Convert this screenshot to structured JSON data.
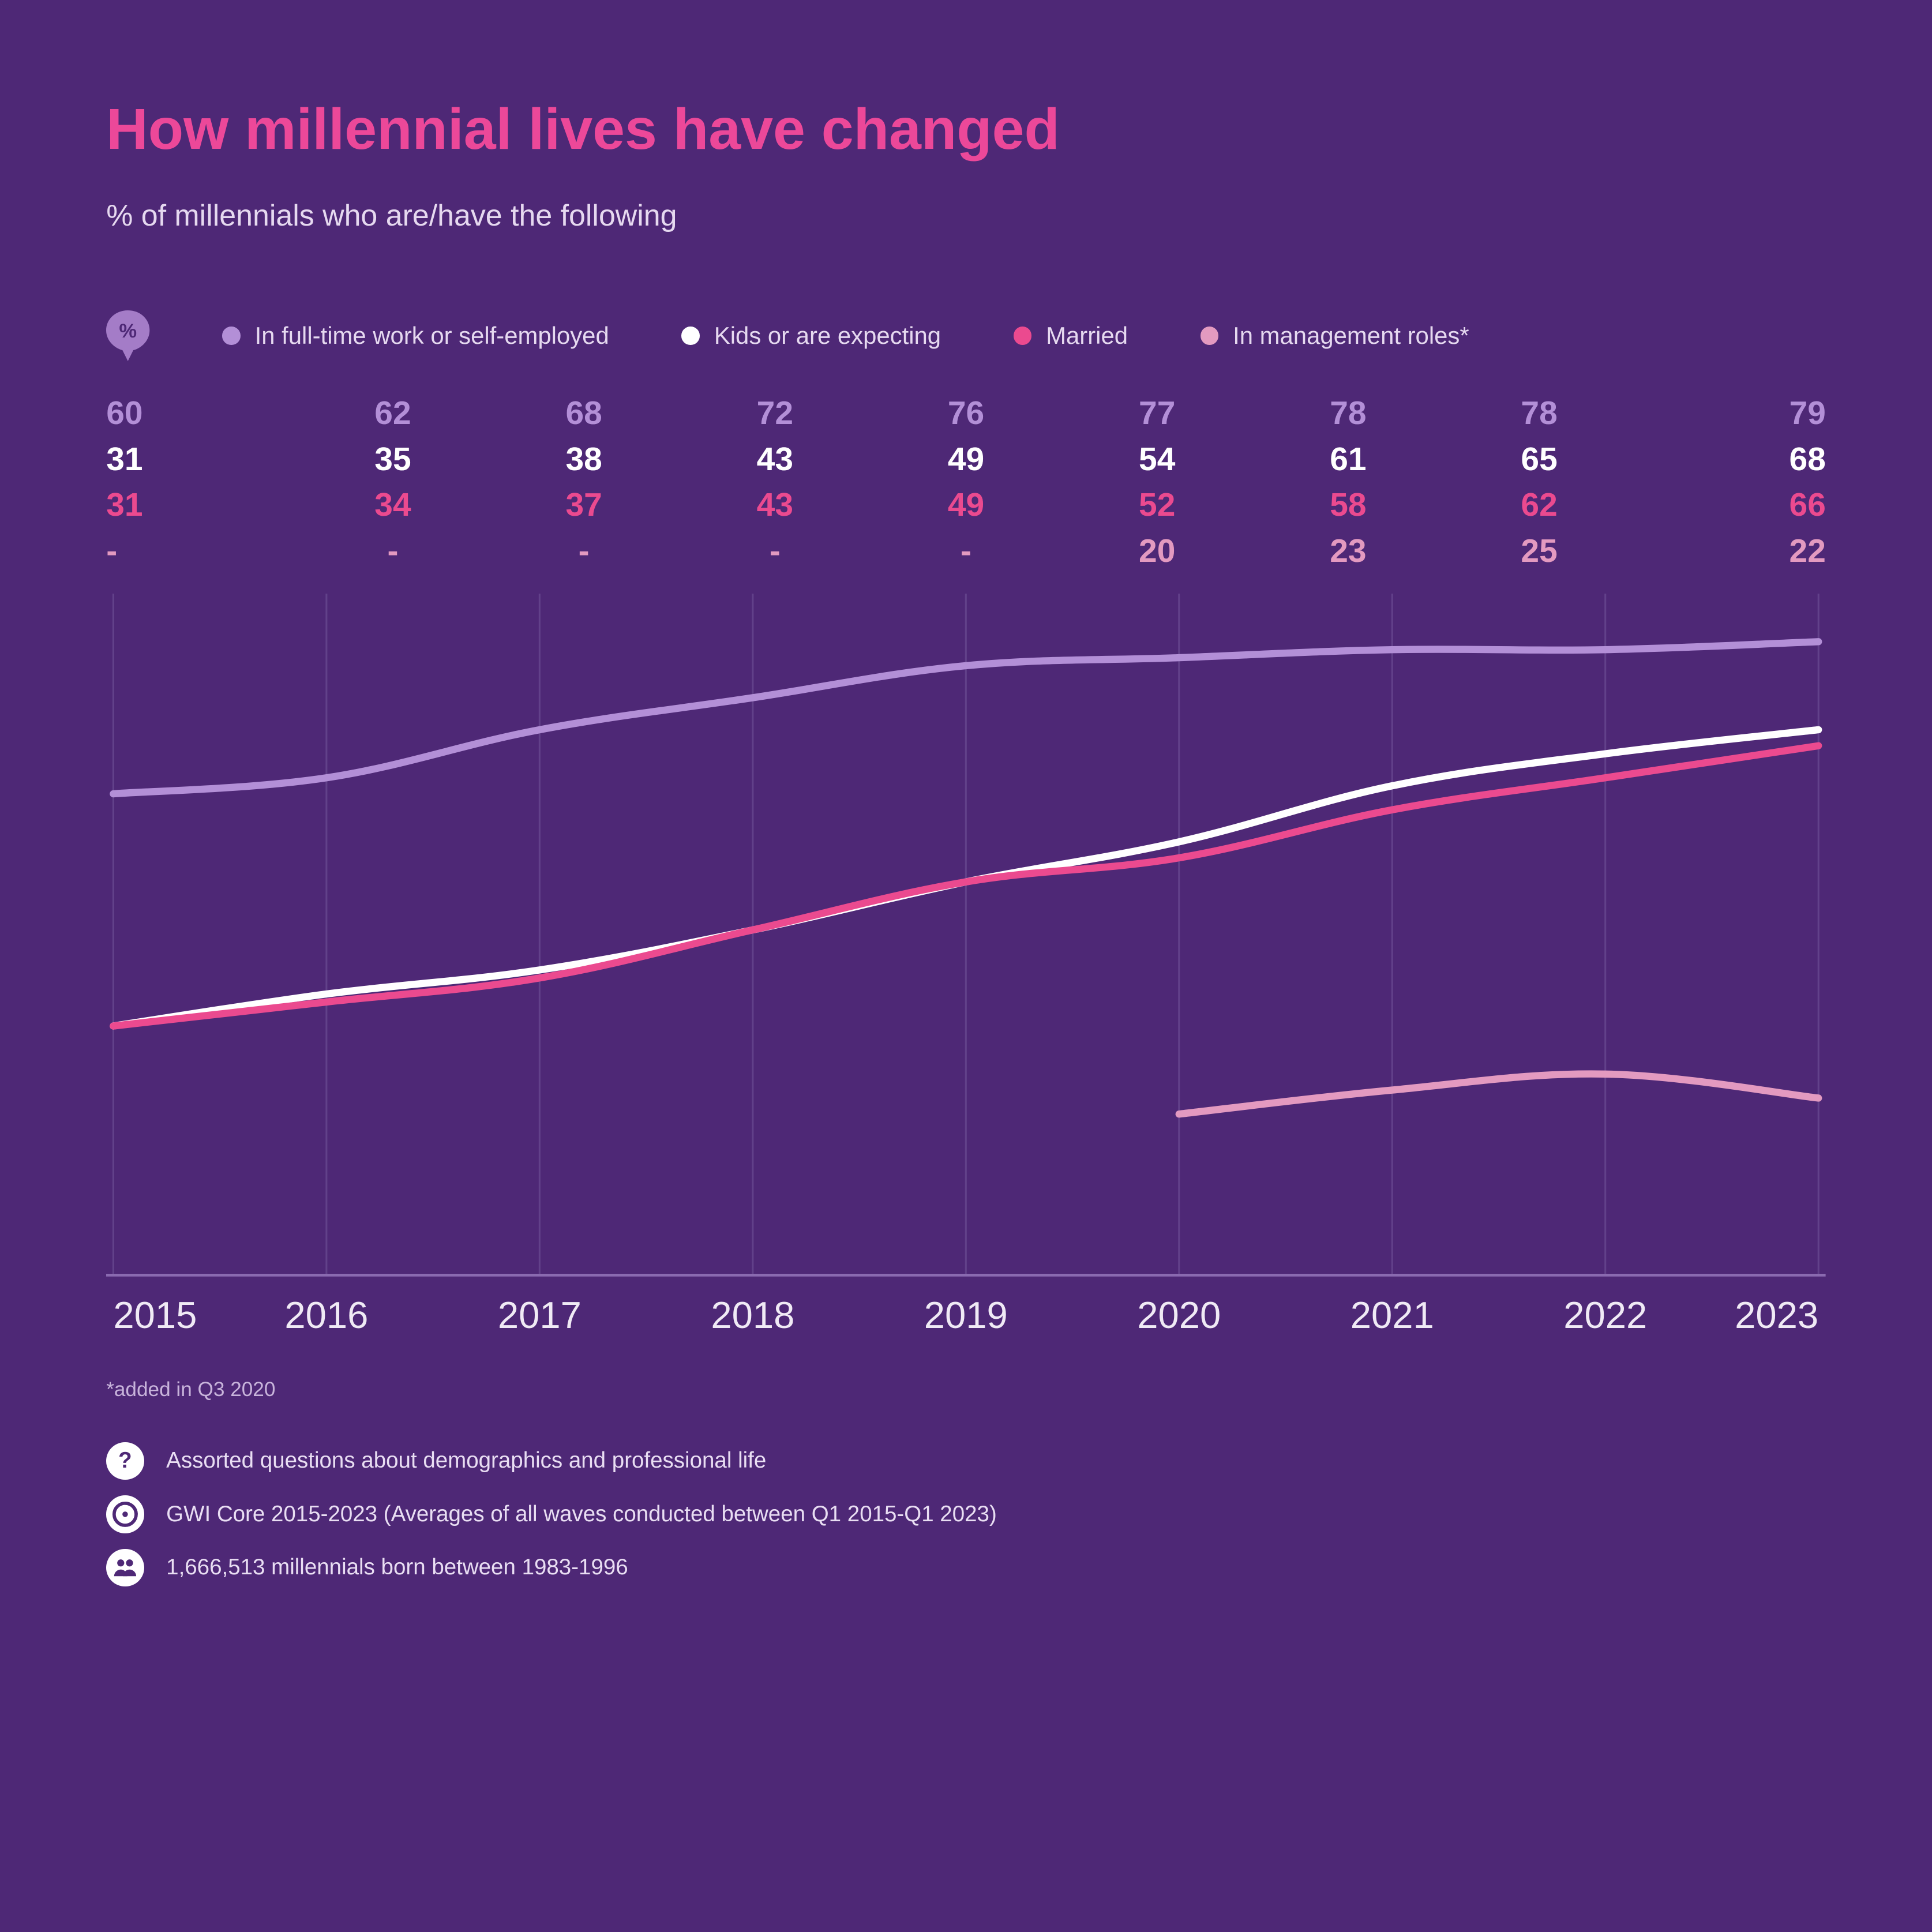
{
  "colors": {
    "background": "#4e2876",
    "title": "#ec4899",
    "subtitle": "#e6d9f0",
    "axis": "#f0eaf5",
    "gridline": "#62418a",
    "xaxis_line": "#8a6ab0"
  },
  "title": "How millennial lives have changed",
  "subtitle": "% of millennials who are/have the following",
  "legend_badge_label": "%",
  "chart": {
    "type": "line",
    "years": [
      "2015",
      "2016",
      "2017",
      "2018",
      "2019",
      "2020",
      "2021",
      "2022",
      "2023"
    ],
    "ylim": [
      0,
      85
    ],
    "aspect_w": 960,
    "aspect_h": 380,
    "line_width": 4,
    "gridline_width": 1,
    "axis_fontsize": 21,
    "series": [
      {
        "key": "fulltime",
        "label": "In full-time work or self-employed",
        "color": "#b38fd7",
        "dot_color": "#b38fd7",
        "values": [
          60,
          62,
          68,
          72,
          76,
          77,
          78,
          78,
          79
        ],
        "display": [
          "60",
          "62",
          "68",
          "72",
          "76",
          "77",
          "78",
          "78",
          "79"
        ]
      },
      {
        "key": "kids",
        "label": "Kids or are expecting",
        "color": "#ffffff",
        "dot_color": "#ffffff",
        "values": [
          31,
          35,
          38,
          43,
          49,
          54,
          61,
          65,
          68
        ],
        "display": [
          "31",
          "35",
          "38",
          "43",
          "49",
          "54",
          "61",
          "65",
          "68"
        ]
      },
      {
        "key": "married",
        "label": "Married",
        "color": "#eb4a8f",
        "dot_color": "#eb4a8f",
        "values": [
          31,
          34,
          37,
          43,
          49,
          52,
          58,
          62,
          66
        ],
        "display": [
          "31",
          "34",
          "37",
          "43",
          "49",
          "52",
          "58",
          "62",
          "66"
        ]
      },
      {
        "key": "management",
        "label": "In management roles*",
        "color": "#e39ac0",
        "dot_color": "#e39ac0",
        "values": [
          null,
          null,
          null,
          null,
          null,
          20,
          23,
          25,
          22
        ],
        "display": [
          "-",
          "-",
          "-",
          "-",
          "-",
          "20",
          "23",
          "25",
          "22"
        ]
      }
    ]
  },
  "footnote": "*added in Q3 2020",
  "meta": {
    "question": "Assorted questions about demographics and professional life",
    "source": " GWI Core 2015-2023 (Averages of all waves conducted between Q1 2015-Q1 2023)",
    "sample": "1,666,513 millennials born between 1983-1996"
  }
}
